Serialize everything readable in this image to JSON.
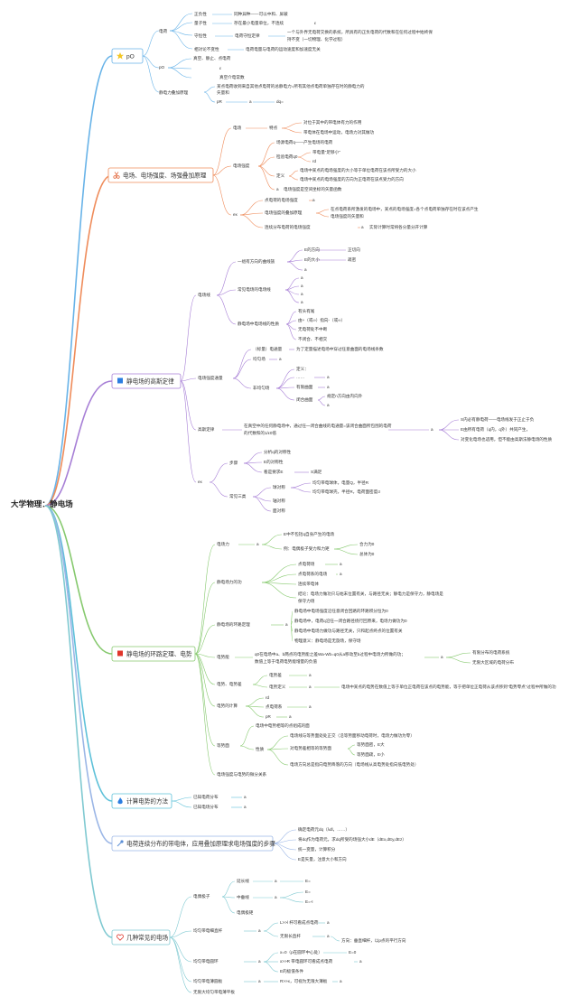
{
  "root": "大学物理：静电场",
  "branches": [
    {
      "id": "b1",
      "title": "pO",
      "icon": "star-icon",
      "color": "#68b3e8",
      "icon_color": "#f3c623"
    },
    {
      "id": "b2",
      "title": "电场、电场强度、场强叠加原理",
      "icon": "scissors-icon",
      "color": "#ef8c5b",
      "icon_color": "#e05a2b"
    },
    {
      "id": "b3",
      "title": "静电场的高斯定律",
      "icon": "flag-icon",
      "color": "#a77fd6",
      "icon_color": "#2b7de0"
    },
    {
      "id": "b4",
      "title": "静电场的环路定理、电势",
      "icon": "flag-icon",
      "color": "#86c96e",
      "icon_color": "#e0352b"
    },
    {
      "id": "b5",
      "title": "计算电势的方法",
      "icon": "flame-icon",
      "color": "#5ec1d9",
      "icon_color": "#2b7de0"
    },
    {
      "id": "b6",
      "title": "电荷连续分布的带电体，应用叠加原理求电场强度的步骤",
      "icon": "pin-icon",
      "color": "#9bb6e6",
      "icon_color": "#5b8fd6"
    },
    {
      "id": "b7",
      "title": "几种常见的电场",
      "icon": "heart-icon",
      "color": "#7fc9d1",
      "icon_color": "#e0352b"
    }
  ],
  "b1": {
    "charge": "电荷",
    "quant": "正负性",
    "quant_d": "同种异种——可以中和、屏蔽",
    "quantum": "量子性",
    "quantum_d": "存在最小电量单位，不连续",
    "conserve": "守恒性",
    "conserve_rule": "电荷守恒定律",
    "conserve_d1": "一个与外界无电荷交换的系统，所具有的正负电荷的代数和在任何过程中始终保",
    "conserve_d2": "持不变（一切物理、化学过程）",
    "relinv": "相对论不变性",
    "relinv_d": "电荷电量与电荷的运动速度和加速度无关",
    "po": "pO",
    "po_1": "真空、静止、点电荷",
    "po_2": "ε",
    "po_3": "真空介电常数",
    "sup": "静电力叠加原理",
    "sup_d1": "某点电荷收到来自其他点电荷的总静电力=所有其他点电荷单独存在时的静电力的",
    "sup_d2": "矢量和",
    "pr": "pR",
    "pr_a": "a",
    "pr_b": "dq="
  },
  "b2": {
    "field": "电场",
    "feature": "特点",
    "feat1": "对位于其中的带电体有力的作用",
    "feat2": "带电体在电场中运动，电场力对其做功",
    "intensity": "电场强度",
    "int1": "场源电荷q——产生电场的电荷",
    "int2": "检验电荷q0",
    "int2a": "带电量\"足够小\"",
    "int2b": "rd",
    "defn": "定义",
    "def1": "电场中某点的电场强度的大小等于单位电荷在该点所受力的大小",
    "def2": "电场中某点的电场强度的方向为正电荷在该点受力的方向",
    "int3": "电场强度是空间坐标的矢量函数",
    "ex": "ex",
    "ex1": "点电荷的电场强度",
    "ex2": "电场强度的叠加原理",
    "ex2d1": "在点电荷系所激发的电场中，某点的电场强度=各个点电荷单独存在时在该点产生",
    "ex2d2": "电场强度的矢量和",
    "ex3": "连续分布电荷的电场强度",
    "ex3d": "实际计算时常将各分量分开计算",
    "a": "a"
  },
  "b3": {
    "lines": "电场线",
    "l1": "一组有方向的曲线族",
    "l1a": "E的方向",
    "l1a_d": "正切向",
    "l1b": "E的大小",
    "l1b_d": "疏密",
    "l2": "常见电场的电场线",
    "l3": "静电场中电场线的性质",
    "l3a": "有头有尾",
    "l3b": "由+（或∞）指向-（或∞）",
    "l3c": "无电荷处不中断",
    "l3d": "不闭合、不相交",
    "flux": "电场强度通量",
    "flux_def": "（标量）电通量",
    "flux_def_d": "为了定量描述电场中穿过任意曲面的电场线条数",
    "uni": "均匀场",
    "nonuni": "非均匀场",
    "def": "定义：",
    "dots": "……",
    "curved": "有限曲面",
    "closed": "闭合曲面",
    "closed_d": "规定n方向由内向外",
    "gauss": "高斯定律",
    "gauss_d1": "在真空中的任何静电场中，通过任一闭合曲线的电通量=该闭合曲面所包围的电荷",
    "gauss_d2": "的代数和的1/ε0倍",
    "g1": "S内必有静电荷——电场线发于正止于负",
    "g2": "E由所有电荷（q内，q外）共同产生，",
    "g3": "对变化电场也适用，但不能由高斯法静电场的性质",
    "ex": "ex",
    "steps": "步骤",
    "s1": "分析q的对称性",
    "s2": "E的对称性",
    "s3": "看是要求E",
    "s3_d": "S满足",
    "three": "常见三类",
    "c1": "球对称",
    "c1a": "均匀带电球体，电量Q，半径R",
    "c1b": "均匀带电球壳，半径R，电荷面密度σ",
    "c2": "轴对称",
    "c3": "面对称",
    "a": "a"
  },
  "b4": {
    "force": "电场力",
    "force_d": "E中不包括q自身产生的电场",
    "force_ex": "例：电偶极子受力和力矩",
    "force_ex1": "合力为0",
    "force_ex2": "总体为0",
    "work": "静电场力的功",
    "w1": "点电荷场",
    "w2": "点电荷系的电场",
    "w3": "连续带电体",
    "w4a": "结论：电场力做功只与始末位置有关，与路径无关；静电力是保守力，静电场是",
    "w4b": "保守力场",
    "loop": "静电场的环路定理",
    "lp1": "静电场中电场强度沿任意闭合回路的环路积分恒为0",
    "lp2": "静电场中，电荷q沿任一闭合路径绕行回原来，电场力做功为0",
    "lp3": "静电场中电场力做功与路径无关，只和起点终点的位置有关",
    "lp4": "物理意义：静电场是无旋场，保守场",
    "pe": "电势能",
    "pe_d1": "q0在电场中a、b两点的电势能之差Wa-Wb=q0从a移动至b过程中电场力所做的功；",
    "pe_d2": "数值上等于电荷电势能增量的负值",
    "pe_r1": "有限分布的电荷系统",
    "pe_r2": "无限大区域的电荷分布",
    "pot": "电势、电势差",
    "pot1": "电势差",
    "pot2": "电势定义",
    "pot2_d": "电场中某点的电势在数值上等于单位正电荷在该点的电势能，等于把单位正电荷从该点移到\"电势零点\"过程中所做的功",
    "calc": "电势的计算",
    "c1": "rd",
    "c2": "点电荷系",
    "c3": "pR",
    "equi": "等势面",
    "eq1": "电场中电势相等的点组成的面",
    "prop": "性质",
    "pr1": "电场线与等势面处处正交（沿等势面移动电荷时，电场力做功为零）",
    "pr2": "对电势差相等的等势面",
    "pr2a": "等势面密，E大",
    "pr2b": "等势面疏，E小",
    "pr3": "电场方向总是指向电势降落的方向（电场线从高电势处指向低电势处）",
    "rel": "电场强度与电势的微分关系",
    "a": "a"
  },
  "b5": {
    "m1": "已知电荷分布",
    "m2": "已知电场分布",
    "a": "a"
  },
  "b6": {
    "s1": "确定电荷元dq（λdl，……）",
    "s2": "将dq作为电荷元，求dq所受的场强大小dE（dEx,dEy,dEz）",
    "s3": "统一变量，计算积分",
    "s4": "E是矢量，注意大小和方向"
  },
  "b7": {
    "dipole": "电偶极子",
    "d1": "延长线",
    "d1v": "E=",
    "d2": "中垂线",
    "d2v": "E=",
    "d2w": "E=-I",
    "d3": "电偶极矩",
    "line": "均匀带电细直杆",
    "ln1": "L>>l 杆可看成点电荷",
    "ln2": "无限长直杆",
    "ln2d": "方向：垂直细杆，以p点的平行方向",
    "ring": "均匀带电圆环",
    "r1": "x=0（p在圆环中心处）",
    "r1v": "E=0",
    "r2": "x>>R 带电圆环可看成点电荷",
    "r3": "E的极值条件",
    "disk": "均匀带电薄圆板",
    "dk1": "R>>x，可视为无限大薄板",
    "plane": "无限大均匀带电薄平板",
    "a": "a"
  }
}
